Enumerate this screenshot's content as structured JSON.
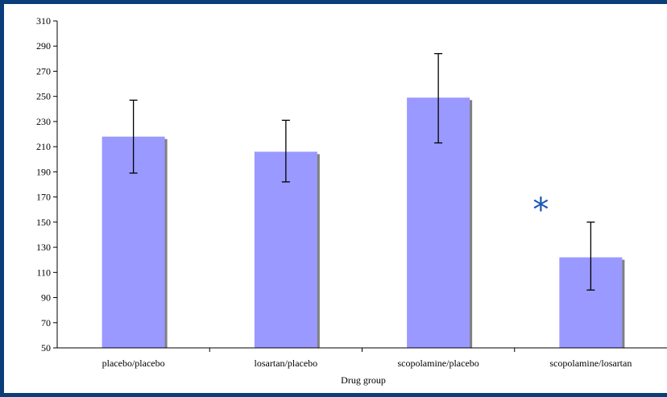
{
  "chart_data": {
    "type": "bar",
    "categories": [
      "placebo/placebo",
      "losartan/placebo",
      "scopolamine/placebo",
      "scopolamine/losartan"
    ],
    "values": [
      218,
      206,
      249,
      122
    ],
    "error_low": [
      189,
      182,
      213,
      96
    ],
    "error_high": [
      247,
      231,
      284,
      150
    ],
    "xlabel": "Drug group",
    "ylabel": "",
    "ylim": [
      50,
      310
    ],
    "yticks": [
      50,
      70,
      90,
      110,
      130,
      150,
      170,
      190,
      210,
      230,
      250,
      270,
      290,
      310
    ],
    "grid": false,
    "legend": "none",
    "annotations": [
      {
        "category": "scopolamine/losartan",
        "text": "*"
      }
    ],
    "colors": {
      "bar": "#9999ff",
      "bar_shadow": "#808080",
      "annotation": "#1a56b0",
      "frame": "#0a3d7a"
    }
  }
}
